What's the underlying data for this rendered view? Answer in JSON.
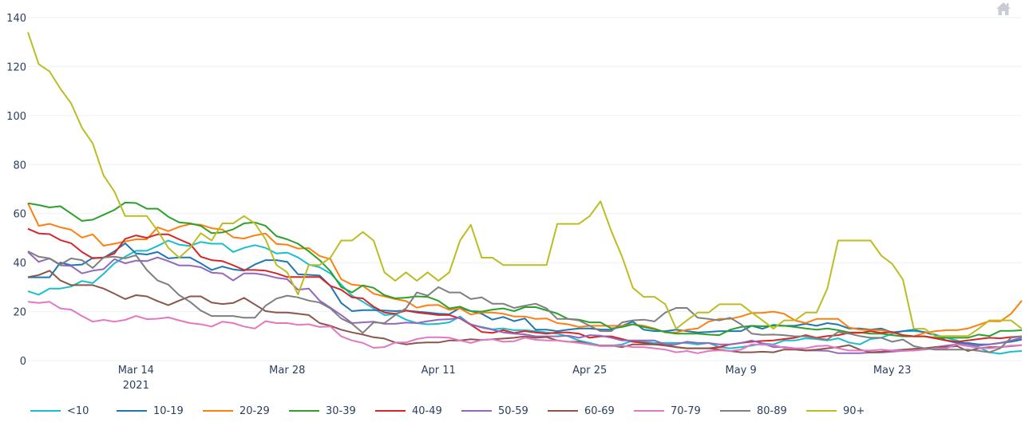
{
  "toolbar": {
    "home_icon": "home-icon"
  },
  "chart_data": {
    "type": "line",
    "title": "",
    "xlabel": "",
    "ylabel": "",
    "ylim": [
      0,
      140
    ],
    "grid": true,
    "legend_position": "bottom",
    "y_ticks": [
      "0",
      "20",
      "40",
      "60",
      "80",
      "100",
      "120",
      "140"
    ],
    "x_ticks": [
      {
        "date": "2021-03-14",
        "label": "Mar 14",
        "sublabel": "2021"
      },
      {
        "date": "2021-03-28",
        "label": "Mar 28",
        "sublabel": ""
      },
      {
        "date": "2021-04-11",
        "label": "Apr 11",
        "sublabel": ""
      },
      {
        "date": "2021-04-25",
        "label": "Apr 25",
        "sublabel": ""
      },
      {
        "date": "2021-05-09",
        "label": "May 9",
        "sublabel": ""
      },
      {
        "date": "2021-05-23",
        "label": "May 23",
        "sublabel": ""
      }
    ],
    "x": [
      "2021-03-04",
      "2021-03-05",
      "2021-03-06",
      "2021-03-07",
      "2021-03-08",
      "2021-03-09",
      "2021-03-10",
      "2021-03-11",
      "2021-03-12",
      "2021-03-13",
      "2021-03-14",
      "2021-03-15",
      "2021-03-16",
      "2021-03-17",
      "2021-03-18",
      "2021-03-19",
      "2021-03-20",
      "2021-03-21",
      "2021-03-22",
      "2021-03-23",
      "2021-03-24",
      "2021-03-25",
      "2021-03-26",
      "2021-03-27",
      "2021-03-28",
      "2021-03-29",
      "2021-03-30",
      "2021-03-31",
      "2021-04-01",
      "2021-04-02",
      "2021-04-03",
      "2021-04-04",
      "2021-04-05",
      "2021-04-06",
      "2021-04-07",
      "2021-04-08",
      "2021-04-09",
      "2021-04-10",
      "2021-04-11",
      "2021-04-12",
      "2021-04-13",
      "2021-04-14",
      "2021-04-15",
      "2021-04-16",
      "2021-04-17",
      "2021-04-18",
      "2021-04-19",
      "2021-04-20",
      "2021-04-21",
      "2021-04-22",
      "2021-04-23",
      "2021-04-24",
      "2021-04-25",
      "2021-04-26",
      "2021-04-27",
      "2021-04-28",
      "2021-04-29",
      "2021-04-30",
      "2021-05-01",
      "2021-05-02",
      "2021-05-03",
      "2021-05-04",
      "2021-05-05",
      "2021-05-06",
      "2021-05-07",
      "2021-05-08",
      "2021-05-09",
      "2021-05-10",
      "2021-05-11",
      "2021-05-12",
      "2021-05-13",
      "2021-05-14",
      "2021-05-15",
      "2021-05-16",
      "2021-05-17",
      "2021-05-18",
      "2021-05-19",
      "2021-05-20",
      "2021-05-21",
      "2021-05-22",
      "2021-05-23",
      "2021-05-24",
      "2021-05-25",
      "2021-05-26",
      "2021-05-27",
      "2021-05-28",
      "2021-05-29",
      "2021-05-30",
      "2021-05-31",
      "2021-06-01",
      "2021-06-02",
      "2021-06-03",
      "2021-06-04"
    ],
    "series": [
      {
        "name": "<10",
        "color": "#17becf",
        "values": [
          28.3,
          26.9,
          29.4,
          29.4,
          30.2,
          32.5,
          31.6,
          35.4,
          39.7,
          42.4,
          44.8,
          44.8,
          46.8,
          49,
          47.3,
          46.8,
          48.4,
          47.7,
          47.7,
          44.3,
          46,
          47.1,
          46,
          43.7,
          44.1,
          42.1,
          39.2,
          38.1,
          35.6,
          31,
          26.5,
          24,
          21.3,
          18.6,
          18.9,
          16.7,
          15.3,
          14.8,
          15,
          15.6,
          18,
          14.6,
          13.7,
          12.8,
          13.1,
          12.4,
          12.4,
          12,
          11.5,
          11,
          9.9,
          8.2,
          7.2,
          6.1,
          6.1,
          6.6,
          8.2,
          7.7,
          7.2,
          7.2,
          7.2,
          7.2,
          6.6,
          7.2,
          5.5,
          5,
          5.5,
          6.1,
          7,
          6.6,
          8.2,
          8.2,
          9.1,
          8.8,
          8.2,
          9.1,
          7.4,
          6.6,
          8.8,
          9.3,
          11,
          12,
          12,
          11.7,
          10.6,
          9.3,
          8.2,
          6.6,
          5.5,
          3.4,
          2.8,
          3.6,
          3.9
        ]
      },
      {
        "name": "10-19",
        "color": "#1f77b4",
        "values": [
          34,
          34,
          34,
          40,
          38.9,
          39.2,
          41.9,
          41.9,
          44.6,
          47.9,
          43.7,
          43.3,
          44.3,
          41.7,
          42.1,
          42.1,
          39.7,
          37,
          38.4,
          37.2,
          36.7,
          39.2,
          41,
          41,
          40.3,
          35.2,
          35,
          34.7,
          30.5,
          23.5,
          20.2,
          20.6,
          20.6,
          20.4,
          20.2,
          20.4,
          20,
          19.6,
          19.1,
          18.9,
          21.5,
          20.2,
          19.1,
          16.7,
          17.8,
          16.1,
          17.2,
          12.6,
          12.6,
          12,
          12.6,
          13.1,
          13.1,
          12.7,
          12.6,
          14.2,
          15.9,
          12.6,
          12,
          12,
          12.6,
          12,
          11.5,
          11.7,
          12,
          12,
          12,
          14.2,
          13,
          14.6,
          14.2,
          14.2,
          15,
          14.2,
          15.3,
          14.7,
          13.1,
          13.1,
          12.6,
          13.1,
          11.5,
          12,
          12.6,
          11.5,
          10.4,
          8.2,
          7.2,
          7.2,
          6.6,
          6.6,
          7.2,
          7.7,
          8.6
        ]
      },
      {
        "name": "20-29",
        "color": "#ff7f0e",
        "values": [
          64.2,
          55,
          55.8,
          54.4,
          53.4,
          50.2,
          51.5,
          46.9,
          47.7,
          48.6,
          49.5,
          49.5,
          54.4,
          52.8,
          54.6,
          55.7,
          55.4,
          54,
          53.5,
          50.3,
          49.8,
          51.1,
          51.9,
          47.6,
          47.3,
          45.7,
          45.9,
          42.7,
          41.4,
          33.2,
          31,
          30.5,
          27.3,
          26.2,
          25.1,
          24.3,
          21.6,
          22.6,
          22.7,
          20.7,
          21.3,
          18.8,
          19.6,
          19.6,
          19.1,
          18,
          18,
          17,
          17.2,
          15.3,
          14.8,
          13.7,
          14.2,
          14.2,
          14.2,
          14.2,
          14.8,
          14.2,
          13.1,
          11.5,
          11.5,
          12.6,
          13.1,
          15.9,
          17,
          17,
          18,
          19.4,
          19.5,
          20,
          19.1,
          16.4,
          15.3,
          17,
          17,
          17,
          13.5,
          12.6,
          12.4,
          12.4,
          11.5,
          10.4,
          9.9,
          11.3,
          12,
          12.4,
          12.4,
          13.1,
          14.6,
          16.1,
          16,
          19.1,
          24.5
        ]
      },
      {
        "name": "30-39",
        "color": "#2ca02c",
        "values": [
          64.2,
          63.5,
          62.5,
          63,
          60,
          57,
          57.5,
          59.5,
          61.5,
          64.5,
          64.3,
          62,
          62,
          58.7,
          56.4,
          56,
          55,
          52,
          52.3,
          53.6,
          56,
          56.4,
          55,
          50.8,
          49.5,
          47.7,
          44.6,
          41,
          36.5,
          30,
          27.8,
          30.7,
          29.7,
          26.7,
          25.4,
          25.7,
          26.2,
          26,
          24.4,
          21.3,
          22,
          20.2,
          20,
          20.8,
          21.3,
          20.2,
          21.8,
          21.8,
          20.5,
          19.2,
          17,
          16.7,
          15.6,
          15.6,
          13.1,
          13.7,
          14.8,
          13.7,
          12.8,
          11.7,
          11,
          11,
          11,
          10.6,
          10.4,
          12.6,
          13.7,
          14.2,
          14,
          14.2,
          14.2,
          13.7,
          13.1,
          12.6,
          13.1,
          12.4,
          11.5,
          11.5,
          11,
          11,
          10.4,
          9.9,
          9.9,
          9.9,
          9.3,
          9.3,
          9.3,
          9.3,
          10.6,
          10,
          12.1,
          12.1,
          12.4
        ]
      },
      {
        "name": "40-49",
        "color": "#d62728",
        "values": [
          53.8,
          51.9,
          51.6,
          49.2,
          47.9,
          44.3,
          41.7,
          42.1,
          43.7,
          49.7,
          51.1,
          50.1,
          51.5,
          51.5,
          49.5,
          47.6,
          42.4,
          41,
          40.6,
          38.9,
          37,
          37,
          36.7,
          35.6,
          34.1,
          34.1,
          34.1,
          34.1,
          30.5,
          28.9,
          25.8,
          25.4,
          22,
          19.6,
          19.1,
          20.4,
          19.6,
          19.1,
          18.6,
          18.6,
          17.2,
          14.6,
          11.7,
          11.3,
          12.4,
          11.3,
          12,
          11.5,
          11,
          11.5,
          11.5,
          11,
          9.3,
          9.9,
          9.9,
          8.8,
          7.7,
          7.2,
          6.6,
          6.6,
          5.5,
          5,
          5,
          5,
          5.5,
          6.6,
          7.2,
          7.7,
          8,
          8.2,
          8.8,
          9.3,
          10.4,
          9.3,
          10,
          10.4,
          11.3,
          11.3,
          12,
          11.3,
          11.7,
          10.4,
          9.9,
          9.9,
          9.1,
          8.2,
          7.7,
          8.2,
          8.8,
          9.3,
          9.1,
          9.6,
          9.9
        ]
      },
      {
        "name": "50-59",
        "color": "#9467bd",
        "values": [
          44.3,
          40.3,
          41.7,
          38.9,
          38.6,
          35.6,
          36.7,
          37.3,
          41.4,
          39.7,
          40.8,
          40.6,
          42.1,
          40.6,
          38.8,
          38.8,
          38.1,
          35.9,
          35.6,
          32.7,
          35.6,
          35.6,
          34.9,
          33.8,
          33.2,
          28.9,
          29.4,
          24.5,
          21.6,
          18.6,
          15.3,
          15.6,
          15.9,
          15,
          15,
          15.5,
          15.3,
          16.1,
          16.7,
          16.9,
          17.5,
          14.8,
          13.5,
          12.6,
          11.5,
          11,
          10.7,
          9.9,
          9.9,
          9.9,
          10.2,
          9.3,
          10.4,
          10.2,
          9.3,
          8.2,
          8.2,
          8.2,
          8.2,
          6.6,
          6.6,
          7.7,
          7.2,
          7.2,
          6.6,
          6.6,
          7.2,
          8.2,
          7,
          5.5,
          5.5,
          5,
          4.1,
          4.1,
          4,
          3,
          3,
          3,
          3.3,
          3.3,
          3.6,
          4,
          4.1,
          5,
          5.5,
          6.1,
          6.6,
          6.6,
          6.1,
          6.6,
          7.2,
          8.2,
          9.3
        ]
      },
      {
        "name": "60-69",
        "color": "#8c564b",
        "values": [
          34.1,
          34.9,
          36.7,
          32.7,
          30.8,
          30.8,
          30.8,
          29.4,
          27.3,
          25.1,
          26.7,
          26.2,
          24.3,
          22.6,
          24.5,
          26.2,
          26.2,
          23.7,
          23.1,
          23.5,
          25.6,
          22.9,
          20.2,
          19.6,
          19.6,
          19.1,
          18.6,
          15.3,
          14.2,
          12.6,
          11.5,
          10.6,
          9.5,
          9,
          7.4,
          6.6,
          7.2,
          7.4,
          7.4,
          8.2,
          8.2,
          8.7,
          8.4,
          8.7,
          9,
          9.3,
          9.9,
          9.3,
          9.6,
          8.2,
          7.7,
          7.7,
          6.6,
          6.1,
          6.1,
          5.5,
          6.6,
          6.6,
          6.6,
          6.1,
          5.5,
          5,
          5,
          5,
          4.5,
          3.9,
          3.4,
          3.4,
          3.6,
          3.4,
          4.5,
          4.5,
          4.1,
          4.5,
          5,
          5.5,
          6.3,
          4.5,
          3.4,
          3.6,
          4.1,
          4.5,
          4.8,
          5,
          5.5,
          5.5,
          5.9,
          3.9,
          5,
          5.5,
          5.5,
          5.9,
          6.3
        ]
      },
      {
        "name": "70-79",
        "color": "#e377c2",
        "values": [
          24,
          23.5,
          24,
          21.3,
          20.8,
          18.2,
          15.9,
          16.6,
          15.9,
          16.6,
          18.2,
          16.9,
          17.1,
          17.6,
          16.4,
          15.3,
          14.8,
          13.9,
          15.9,
          15.3,
          13.9,
          13.1,
          16.1,
          15.3,
          15.3,
          14.6,
          14.8,
          13.7,
          13.9,
          9.9,
          8.2,
          7.2,
          5.2,
          5.5,
          7.4,
          7.4,
          8.8,
          9.5,
          9.5,
          9.3,
          8.2,
          7.2,
          8.4,
          8.7,
          7.7,
          7.9,
          9.3,
          8.5,
          8.2,
          8.2,
          7.7,
          7.2,
          6.6,
          5.9,
          5.9,
          6.1,
          5.5,
          5.5,
          5,
          4.5,
          3.4,
          3.9,
          3,
          3.9,
          4.2,
          3.9,
          4.5,
          6.6,
          6.5,
          6.3,
          5.2,
          5,
          5,
          5.9,
          6.1,
          5,
          4.1,
          4.1,
          4.1,
          4.5,
          4.1,
          4,
          4.1,
          4.5,
          5,
          5,
          6.6,
          5.9,
          5.2,
          5,
          5.5,
          6.1,
          6.3
        ]
      },
      {
        "name": "80-89",
        "color": "#7f7f7f",
        "values": [
          44.6,
          42.4,
          41.7,
          39.2,
          41.7,
          41,
          37.8,
          42.1,
          42.4,
          41.7,
          43,
          37,
          32.7,
          31,
          26.7,
          24,
          20.4,
          18.2,
          18.2,
          18.2,
          17.5,
          17.5,
          22.4,
          25.3,
          26.5,
          25.8,
          24.5,
          23.7,
          21.3,
          17.2,
          15,
          11.3,
          15.6,
          15.3,
          18.6,
          21.3,
          27.8,
          26.5,
          30,
          27.8,
          27.8,
          25.1,
          25.8,
          23.2,
          23.2,
          21.5,
          22.4,
          23.2,
          21.3,
          17,
          17,
          16.4,
          14.2,
          12,
          12,
          15.6,
          16.4,
          16.7,
          16,
          19.6,
          21.5,
          21.5,
          17.5,
          17,
          16.4,
          17.5,
          14.8,
          11,
          10.5,
          10.6,
          10.4,
          9.9,
          9.9,
          9.1,
          8.6,
          11.7,
          11,
          10,
          9.3,
          9.3,
          7.7,
          8.6,
          5.9,
          5,
          4.5,
          4.5,
          4.5,
          4.5,
          4,
          3.4,
          5,
          9.3,
          9.9
        ]
      },
      {
        "name": "90+",
        "color": "#bcbd22",
        "values": [
          134,
          121,
          118,
          111,
          105,
          95,
          88.6,
          75.6,
          69,
          59,
          59,
          59,
          53,
          46,
          42,
          46,
          52,
          49,
          56,
          56,
          59,
          56,
          49.5,
          39,
          36,
          27,
          39,
          39,
          42,
          49,
          49,
          52.5,
          49,
          36,
          32.6,
          36,
          32.6,
          36,
          32.6,
          36,
          49,
          55.4,
          42,
          42,
          39,
          39,
          39,
          39,
          39,
          55.8,
          55.8,
          55.8,
          59,
          65,
          52.8,
          42.4,
          29.7,
          26,
          26,
          23,
          13,
          16.4,
          19.6,
          19.6,
          23,
          23,
          23,
          19.6,
          16.4,
          13,
          16.4,
          16.4,
          19.6,
          19.6,
          29.4,
          49,
          49,
          49,
          49,
          42.8,
          39.5,
          33,
          13,
          13,
          9.9,
          10,
          10,
          10,
          13,
          16.4,
          16.4,
          16.4,
          13
        ]
      }
    ]
  }
}
